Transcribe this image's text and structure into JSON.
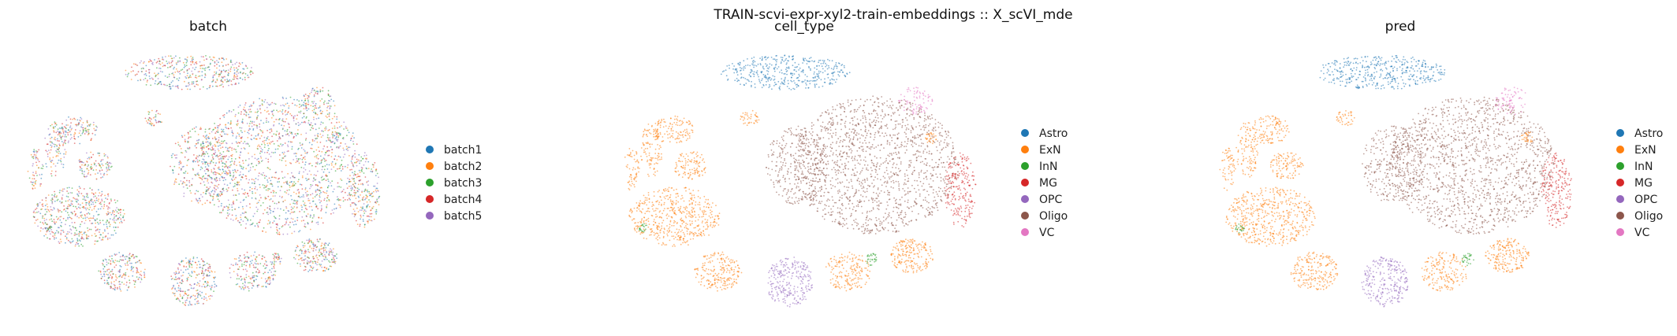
{
  "figure": {
    "suptitle": "TRAIN-scvi-expr-xyl2-train-embeddings :: X_scVI_mde"
  },
  "chart_data": [
    {
      "type": "scatter",
      "title": "batch",
      "xlabel": "",
      "ylabel": "",
      "grid": false,
      "legend_placement": "right",
      "legend": [
        {
          "name": "batch1",
          "color": "#1f77b4"
        },
        {
          "name": "batch2",
          "color": "#ff7f0e"
        },
        {
          "name": "batch3",
          "color": "#2ca02c"
        },
        {
          "name": "batch4",
          "color": "#d62728"
        },
        {
          "name": "batch5",
          "color": "#9467bd"
        }
      ]
    },
    {
      "type": "scatter",
      "title": "cell_type",
      "xlabel": "",
      "ylabel": "",
      "grid": false,
      "legend_placement": "right",
      "legend": [
        {
          "name": "Astro",
          "color": "#1f77b4"
        },
        {
          "name": "ExN",
          "color": "#ff7f0e"
        },
        {
          "name": "InN",
          "color": "#2ca02c"
        },
        {
          "name": "MG",
          "color": "#d62728"
        },
        {
          "name": "OPC",
          "color": "#9467bd"
        },
        {
          "name": "Oligo",
          "color": "#8c564b"
        },
        {
          "name": "VC",
          "color": "#e377c2"
        }
      ]
    },
    {
      "type": "scatter",
      "title": "pred",
      "xlabel": "",
      "ylabel": "",
      "grid": false,
      "legend_placement": "right",
      "legend": [
        {
          "name": "Astro",
          "color": "#1f77b4"
        },
        {
          "name": "ExN",
          "color": "#ff7f0e"
        },
        {
          "name": "InN",
          "color": "#2ca02c"
        },
        {
          "name": "MG",
          "color": "#d62728"
        },
        {
          "name": "OPC",
          "color": "#9467bd"
        },
        {
          "name": "Oligo",
          "color": "#8c564b"
        },
        {
          "name": "VC",
          "color": "#e377c2"
        }
      ]
    }
  ]
}
